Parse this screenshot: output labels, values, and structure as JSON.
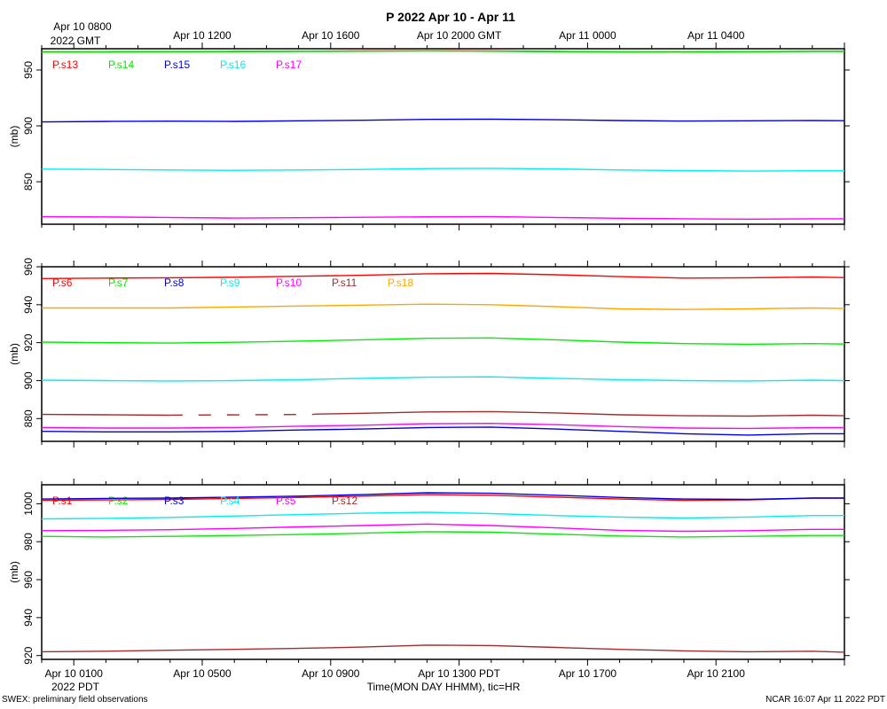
{
  "header": {
    "title": "P 2022 Apr 10 - Apr 11",
    "top_left_time": "Apr 10 0800",
    "top_left_tz": "2022 GMT",
    "bottom_left_tz": "2022 PDT",
    "xlabel": "Time(MON DAY HHMM), tic=HR"
  },
  "footer": {
    "left_note": "SWEX: preliminary field observations",
    "right_note": "NCAR 16:07 Apr 11 2022 PDT"
  },
  "axis_time": {
    "unit": "hours since Apr 10 0800 GMT",
    "range": [
      -1,
      24
    ],
    "gmt_ticks": [
      {
        "h": 0,
        "label": "Apr 10 0800"
      },
      {
        "h": 4,
        "label": "Apr 10 1200"
      },
      {
        "h": 8,
        "label": "Apr 10 1600"
      },
      {
        "h": 12,
        "label": "Apr 10 2000 GMT"
      },
      {
        "h": 16,
        "label": "Apr 11 0000"
      },
      {
        "h": 20,
        "label": "Apr 11 0400"
      }
    ],
    "pdt_ticks": [
      {
        "h": 0,
        "label": "Apr 10 0100"
      },
      {
        "h": 4,
        "label": "Apr 10 0500"
      },
      {
        "h": 8,
        "label": "Apr 10 0900"
      },
      {
        "h": 12,
        "label": "Apr 10 1300 PDT"
      },
      {
        "h": 16,
        "label": "Apr 10 1700"
      },
      {
        "h": 20,
        "label": "Apr 10 2100"
      }
    ]
  },
  "chart_data": [
    {
      "type": "line",
      "ylabel": "(mb)",
      "ylim": [
        812,
        969
      ],
      "yticks": [
        850,
        900,
        950
      ],
      "legend_placement": "top-left inside",
      "x": [
        -1,
        1,
        3,
        5,
        7,
        9,
        11,
        13,
        15,
        17,
        19,
        21,
        23,
        24
      ],
      "series": [
        {
          "name": "P.s13",
          "color": "#ff0000",
          "values": [
            966.2,
            966.3,
            966.5,
            966.6,
            966.8,
            967.0,
            967.2,
            967.0,
            966.6,
            966.3,
            966.2,
            966.4,
            966.8,
            966.8
          ]
        },
        {
          "name": "P.s14",
          "color": "#00ee00",
          "values": [
            966.0,
            966.1,
            966.3,
            966.4,
            966.6,
            966.8,
            967.0,
            966.8,
            966.4,
            966.1,
            966.0,
            966.2,
            966.6,
            966.6
          ]
        },
        {
          "name": "P.s15",
          "color": "#0000dd",
          "values": [
            903.5,
            904.0,
            904.2,
            904.0,
            904.5,
            905.0,
            905.8,
            906.0,
            905.5,
            904.8,
            904.3,
            904.5,
            904.8,
            904.6
          ]
        },
        {
          "name": "P.s16",
          "color": "#00eeee",
          "values": [
            861.3,
            861.0,
            860.5,
            860.2,
            860.5,
            861.0,
            861.8,
            862.0,
            861.5,
            860.5,
            860.0,
            859.5,
            859.8,
            859.8
          ]
        },
        {
          "name": "P.s17",
          "color": "#ff00ff",
          "values": [
            818.8,
            818.5,
            818.0,
            817.5,
            817.8,
            818.2,
            818.6,
            818.8,
            818.0,
            817.3,
            816.8,
            816.5,
            816.8,
            816.8
          ]
        }
      ]
    },
    {
      "type": "line",
      "ylabel": "(mb)",
      "ylim": [
        868,
        960
      ],
      "yticks": [
        880,
        900,
        920,
        940,
        960
      ],
      "legend_placement": "top-left inside",
      "x": [
        -1,
        1,
        3,
        5,
        7,
        9,
        11,
        13,
        15,
        17,
        19,
        21,
        23,
        24
      ],
      "series": [
        {
          "name": "P.s6",
          "color": "#ff0000",
          "values": [
            953.8,
            954.0,
            954.2,
            954.5,
            955.0,
            955.5,
            956.3,
            956.5,
            955.8,
            954.8,
            954.0,
            954.2,
            954.6,
            954.3
          ]
        },
        {
          "name": "P.s7",
          "color": "#00ee00",
          "values": [
            920.3,
            920.0,
            919.8,
            920.2,
            920.8,
            921.5,
            922.3,
            922.5,
            921.5,
            920.3,
            919.5,
            919.2,
            919.5,
            919.3
          ]
        },
        {
          "name": "P.s8",
          "color": "#0000dd",
          "values": [
            873.3,
            873.0,
            873.0,
            873.3,
            874.0,
            874.5,
            875.3,
            875.5,
            874.5,
            873.3,
            872.0,
            871.3,
            872.0,
            872.0
          ]
        },
        {
          "name": "P.s9",
          "color": "#00eeee",
          "values": [
            900.2,
            900.0,
            899.8,
            900.0,
            900.5,
            901.2,
            901.8,
            902.0,
            901.2,
            900.5,
            900.0,
            899.8,
            900.2,
            900.0
          ]
        },
        {
          "name": "P.s10",
          "color": "#ff00ff",
          "values": [
            875.3,
            875.0,
            875.0,
            875.3,
            876.0,
            876.5,
            877.3,
            877.5,
            876.8,
            875.8,
            875.0,
            874.8,
            875.2,
            875.2
          ]
        },
        {
          "name": "P.s11",
          "color": "#a52a2a",
          "dashed_gap": [
            3.0,
            7.5
          ],
          "values": [
            882.2,
            882.0,
            881.8,
            881.8,
            882.2,
            882.8,
            883.5,
            883.7,
            883.0,
            882.0,
            881.5,
            881.3,
            881.8,
            881.5
          ]
        },
        {
          "name": "P.s18",
          "color": "#ffa500",
          "values": [
            938.3,
            938.3,
            938.3,
            938.8,
            939.3,
            939.8,
            940.3,
            940.0,
            939.0,
            937.8,
            937.5,
            937.8,
            938.3,
            938.0
          ]
        }
      ]
    },
    {
      "type": "line",
      "ylabel": "(mb)",
      "ylim": [
        918,
        1010
      ],
      "yticks": [
        920,
        940,
        960,
        980,
        1000
      ],
      "legend_placement": "top-left inside",
      "x": [
        -1,
        1,
        3,
        5,
        7,
        9,
        11,
        13,
        15,
        17,
        19,
        21,
        23,
        24
      ],
      "series": [
        {
          "name": "P.s1",
          "color": "#ff0000",
          "values": [
            1001.8,
            1002.0,
            1002.3,
            1002.8,
            1003.3,
            1004.0,
            1004.8,
            1004.5,
            1003.5,
            1002.5,
            1001.8,
            1002.0,
            1003.0,
            1003.0
          ]
        },
        {
          "name": "P.s2",
          "color": "#00ee00",
          "values": [
            982.8,
            982.5,
            982.8,
            983.3,
            983.8,
            984.5,
            985.3,
            985.0,
            984.0,
            983.0,
            982.5,
            982.8,
            983.3,
            983.3
          ]
        },
        {
          "name": "P.s3",
          "color": "#0000dd",
          "values": [
            1002.5,
            1002.8,
            1003.0,
            1003.5,
            1004.0,
            1004.8,
            1005.8,
            1005.5,
            1004.5,
            1003.3,
            1002.5,
            1002.3,
            1003.0,
            1003.0
          ]
        },
        {
          "name": "P.s4",
          "color": "#00eeee",
          "values": [
            992.0,
            992.3,
            992.8,
            993.5,
            994.3,
            995.0,
            995.5,
            994.8,
            993.8,
            993.0,
            992.5,
            993.0,
            993.8,
            993.8
          ]
        },
        {
          "name": "P.s5",
          "color": "#ff00ff",
          "values": [
            985.8,
            986.0,
            986.3,
            987.0,
            987.8,
            988.5,
            989.3,
            988.5,
            987.3,
            986.0,
            985.5,
            985.8,
            986.5,
            986.5
          ]
        },
        {
          "name": "P.s12",
          "color": "#a52a2a",
          "values": [
            922.0,
            922.3,
            922.8,
            923.3,
            923.8,
            924.5,
            925.5,
            925.3,
            924.3,
            923.3,
            922.5,
            922.0,
            922.3,
            921.8
          ]
        }
      ]
    }
  ]
}
